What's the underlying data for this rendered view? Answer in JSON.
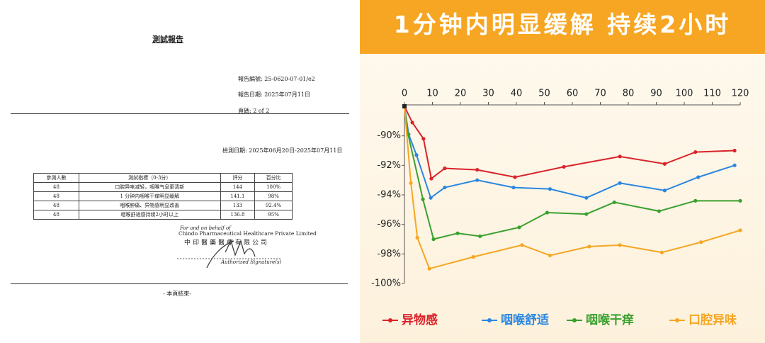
{
  "document": {
    "title": "測試報告",
    "report_no": "報告編號:  25-0620-07-01/e2",
    "report_date": "報告日期:  2025年07月11日",
    "page": "頁碼:  2 of 2",
    "test_date": "檢測日期:  2025年06月20日-2025年07月11日",
    "table": {
      "header": [
        "參測人數",
        "測試指標（0-3分）",
        "評分",
        "百分比"
      ],
      "rows": [
        [
          "48",
          "口腔异味减轻，咽喉气息更清新",
          "144",
          "100%"
        ],
        [
          "48",
          "1 分钟内咽喉干痒明显缓解",
          "141.1",
          "98%"
        ],
        [
          "48",
          "咽喉肿痛、异物感明显改善",
          "133",
          "92.4%"
        ],
        [
          "48",
          "咽喉舒适感持续2小时以上",
          "136.8",
          "95%"
        ]
      ]
    },
    "behalf": "For and on behalf of",
    "company_en": "Chindo Pharmaceutical Healthcare Private Limited",
    "company_zh": "中印醫藥醫療有限公司",
    "signature": "Authorized Signature(s)",
    "end": "- 本頁結束-"
  },
  "chart_data": {
    "type": "line",
    "title": "1分钟内明显缓解 持续2小时",
    "xlim": [
      0,
      120
    ],
    "xticks": [
      0,
      10,
      20,
      30,
      40,
      50,
      60,
      70,
      80,
      90,
      100,
      110,
      120
    ],
    "ylim": [
      -100,
      -88
    ],
    "yticks": [
      {
        "value": -90,
        "label": "-90%"
      },
      {
        "value": -92,
        "label": "-92%"
      },
      {
        "value": -94,
        "label": "-94%"
      },
      {
        "value": -96,
        "label": "-96%"
      },
      {
        "value": -98,
        "label": "-98%"
      },
      {
        "value": -100,
        "label": "-100%"
      }
    ],
    "series": [
      {
        "name": "异物感",
        "color": "#d9232b",
        "x": [
          0,
          2.8,
          6.8,
          9.6,
          14.4,
          26,
          39.5,
          57,
          77,
          93,
          104,
          118
        ],
        "values": [
          -88,
          -89.1,
          -90.2,
          -92.9,
          -92.2,
          -92.3,
          -92.8,
          -92.1,
          -91.4,
          -91.9,
          -91.1,
          -91.0
        ]
      },
      {
        "name": "咽喉舒适",
        "color": "#2a86e0",
        "x": [
          0,
          1.5,
          4.3,
          9.4,
          14.4,
          26,
          39,
          52,
          65,
          77,
          93,
          105,
          118
        ],
        "values": [
          -88,
          -89.9,
          -91.3,
          -94.2,
          -93.5,
          -93.0,
          -93.5,
          -93.6,
          -94.2,
          -93.2,
          -93.7,
          -92.8,
          -92.0
        ]
      },
      {
        "name": "咽喉干痒",
        "color": "#3aa02e",
        "x": [
          0,
          1.3,
          6.6,
          10.4,
          19,
          27,
          41,
          51,
          65,
          75,
          91,
          104,
          120
        ],
        "values": [
          -88,
          -89.9,
          -94.3,
          -97.0,
          -96.6,
          -96.8,
          -96.2,
          -95.2,
          -95.3,
          -94.5,
          -95.1,
          -94.4,
          -94.4
        ]
      },
      {
        "name": "口腔异味",
        "color": "#f5a623",
        "x": [
          0,
          2.3,
          4.6,
          8.9,
          24.6,
          42,
          52,
          66,
          77,
          92,
          106,
          120
        ],
        "values": [
          -88,
          -93.2,
          -96.9,
          -99.0,
          -98.2,
          -97.4,
          -98.1,
          -97.5,
          -97.4,
          -97.9,
          -97.2,
          -96.4
        ]
      }
    ]
  }
}
